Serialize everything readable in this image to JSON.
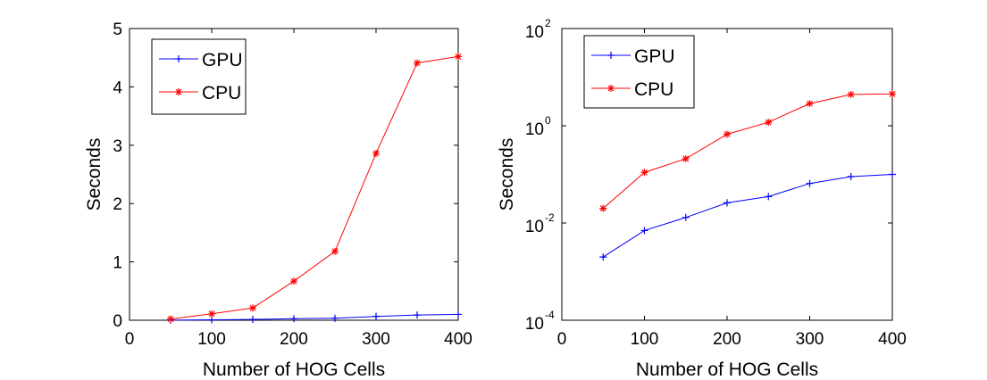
{
  "chart_data": [
    {
      "type": "line",
      "title": "",
      "xlabel": "Number of HOG Cells",
      "ylabel": "Seconds",
      "xlim": [
        0,
        400
      ],
      "ylim": [
        0,
        5
      ],
      "yscale": "linear",
      "grid": false,
      "legend_position": "top-left",
      "xticks": [
        "0",
        "100",
        "200",
        "300",
        "400"
      ],
      "yticks": [
        "0",
        "1",
        "2",
        "3",
        "4",
        "5"
      ],
      "x": [
        50,
        100,
        150,
        200,
        250,
        300,
        350,
        400
      ],
      "series": [
        {
          "name": "GPU",
          "color": "#0000ff",
          "marker": "plus",
          "values": [
            0.002,
            0.007,
            0.013,
            0.026,
            0.035,
            0.065,
            0.09,
            0.1
          ]
        },
        {
          "name": "CPU",
          "color": "#ff0000",
          "marker": "asterisk",
          "values": [
            0.02,
            0.11,
            0.21,
            0.67,
            1.18,
            2.86,
            4.41,
            4.52
          ]
        }
      ]
    },
    {
      "type": "line",
      "title": "",
      "xlabel": "Number of HOG Cells",
      "ylabel": "Seconds",
      "xlim": [
        0,
        400
      ],
      "ylim": [
        0.0001,
        100
      ],
      "yscale": "log",
      "grid": false,
      "legend_position": "top-left",
      "xticks": [
        "0",
        "100",
        "200",
        "300",
        "400"
      ],
      "yticks": [
        {
          "base": "10",
          "exp": "-4",
          "value": 0.0001
        },
        {
          "base": "10",
          "exp": "-2",
          "value": 0.01
        },
        {
          "base": "10",
          "exp": "0",
          "value": 1
        },
        {
          "base": "10",
          "exp": "2",
          "value": 100
        }
      ],
      "x": [
        50,
        100,
        150,
        200,
        250,
        300,
        350,
        400
      ],
      "series": [
        {
          "name": "GPU",
          "color": "#0000ff",
          "marker": "plus",
          "values": [
            0.002,
            0.007,
            0.013,
            0.026,
            0.035,
            0.065,
            0.09,
            0.1
          ]
        },
        {
          "name": "CPU",
          "color": "#ff0000",
          "marker": "asterisk",
          "values": [
            0.02,
            0.11,
            0.21,
            0.67,
            1.18,
            2.86,
            4.41,
            4.52
          ]
        }
      ]
    }
  ]
}
